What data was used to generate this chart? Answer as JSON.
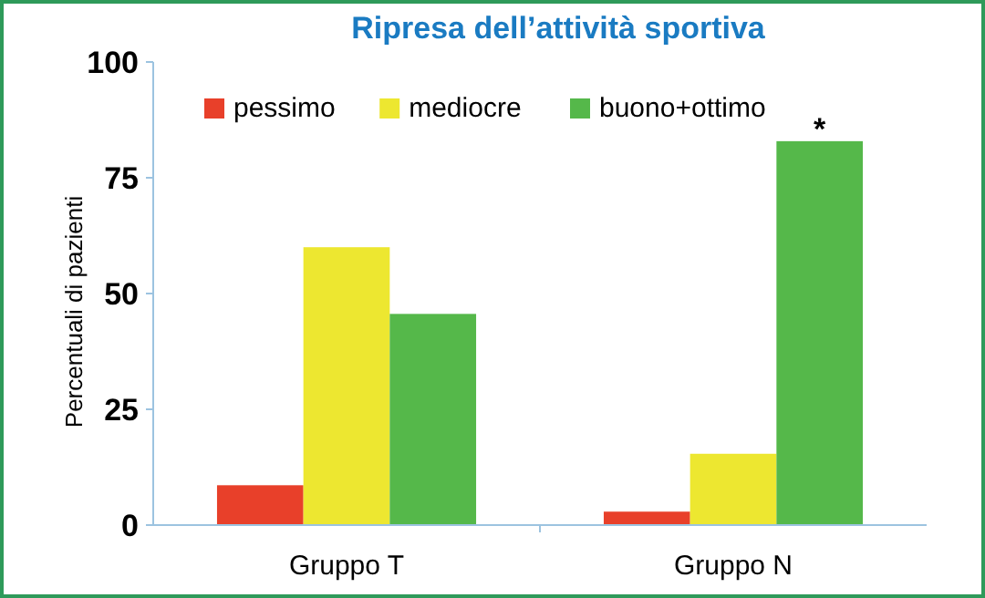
{
  "chart_data": {
    "type": "bar",
    "title": "Ripresa dell’attività sportiva",
    "ylabel": "Percentuali di pazienti",
    "categories": [
      "Gruppo T",
      "Gruppo N"
    ],
    "series": [
      {
        "name": "pessimo",
        "color": "#e8402a",
        "values": [
          8.6,
          2.9
        ]
      },
      {
        "name": "mediocre",
        "color": "#ede730",
        "values": [
          60,
          15.4
        ]
      },
      {
        "name": "buono+ottimo",
        "color": "#55b84a",
        "values": [
          45.6,
          82.9
        ]
      }
    ],
    "ylim": [
      0,
      100
    ],
    "yticks": [
      0,
      25,
      50,
      75,
      100
    ],
    "grid": false,
    "legend": "top",
    "annotations": [
      "*"
    ]
  }
}
